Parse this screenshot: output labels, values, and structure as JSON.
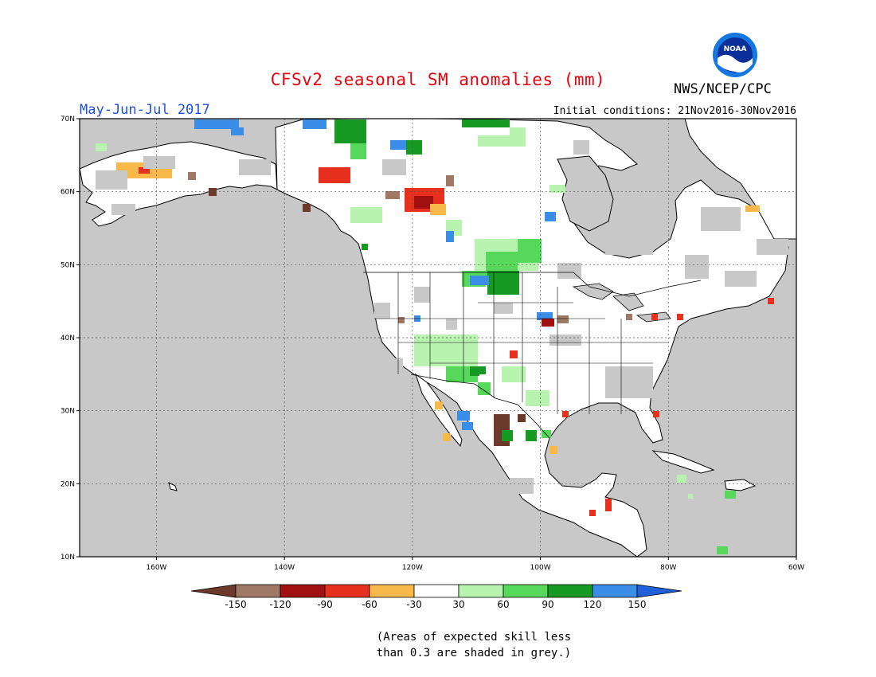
{
  "header": {
    "title": "CFSv2 seasonal SM anomalies (mm)",
    "period": "May-Jun-Jul 2017",
    "initial_conditions": "Initial conditions: 21Nov2016-30Nov2016",
    "agency": "NWS/NCEP/CPC",
    "logo_text": "NOAA"
  },
  "map": {
    "lon_range": [
      -172,
      -60
    ],
    "lat_range": [
      10,
      70
    ],
    "lon_ticks": [
      "160W",
      "140W",
      "120W",
      "100W",
      "80W",
      "60W"
    ],
    "lat_ticks": [
      "10N",
      "20N",
      "30N",
      "40N",
      "50N",
      "60N",
      "70N"
    ],
    "ocean_color": "#c8c8c8"
  },
  "colorbar": {
    "labels": [
      "-150",
      "-120",
      "-90",
      "-60",
      "-30",
      "30",
      "60",
      "90",
      "120",
      "150"
    ],
    "colors": [
      "#6b3a2a",
      "#a07866",
      "#a01010",
      "#e8301e",
      "#f8b84a",
      "#ffffff",
      "#b8f4b0",
      "#56d95a",
      "#169a24",
      "#3b8ee8",
      "#2060d8"
    ]
  },
  "note": {
    "line1": "(Areas of expected skill less",
    "line2": "than 0.3 are shaded in grey.)"
  }
}
